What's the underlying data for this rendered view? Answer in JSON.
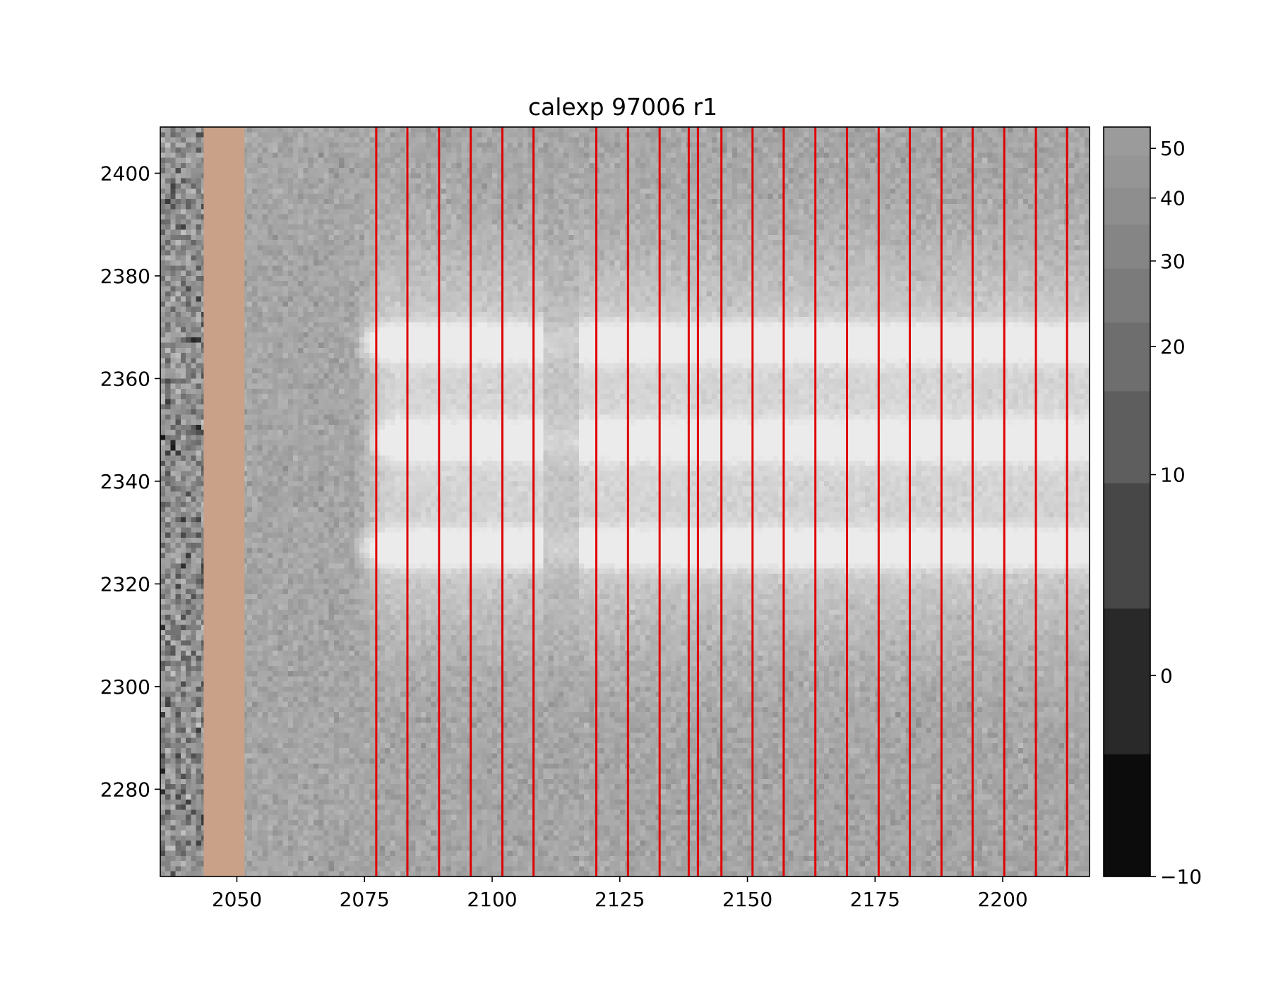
{
  "chart_data": {
    "type": "heatmap",
    "title": "calexp 97006 r1",
    "xlabel": "",
    "ylabel": "",
    "xlim": [
      2035,
      2217
    ],
    "ylim": [
      2263,
      2409
    ],
    "x_ticks": [
      2050,
      2075,
      2100,
      2125,
      2150,
      2175,
      2200
    ],
    "y_ticks": [
      2280,
      2300,
      2320,
      2340,
      2360,
      2380,
      2400
    ],
    "colormap": "gray",
    "colorbar": {
      "scale": "asinh",
      "range": [
        -10,
        55
      ],
      "ticks": [
        -10,
        0,
        10,
        20,
        30,
        40,
        50
      ]
    },
    "masked_column_band": {
      "x_range": [
        2043.5,
        2051.5
      ],
      "color": "#c9a088"
    },
    "bright_row_bands": [
      {
        "y_center": 2367,
        "peak": 55,
        "x_start": 2073,
        "x_end": 2217
      },
      {
        "y_center": 2348,
        "peak": 50,
        "x_start": 2075,
        "x_end": 2217
      },
      {
        "y_center": 2327,
        "peak": 55,
        "x_start": 2073,
        "x_end": 2217
      }
    ],
    "dim_gap_x_range": [
      2110,
      2117
    ],
    "vertical_lines": {
      "color": "#e00000",
      "x": [
        2077.3,
        2083.4,
        2089.6,
        2095.8,
        2102.0,
        2108.1,
        2120.4,
        2126.6,
        2132.8,
        2138.5,
        2140.3,
        2144.9,
        2151.0,
        2157.1,
        2163.3,
        2169.5,
        2175.7,
        2181.8,
        2188.0,
        2194.1,
        2200.3,
        2206.5,
        2212.6
      ]
    }
  }
}
